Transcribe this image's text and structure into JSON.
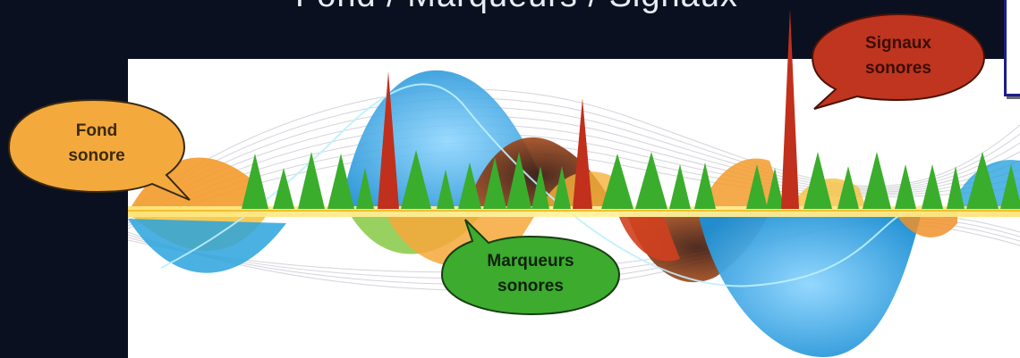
{
  "title": "Fond / Marqueurs / Signaux",
  "callouts": {
    "background": {
      "line1": "Fond",
      "line2": "sonore",
      "color": "#f4a93d"
    },
    "markers": {
      "line1": "Marqueurs",
      "line2": "sonores",
      "color": "#3cab2e"
    },
    "signals": {
      "line1": "Signaux",
      "line2": "sonores",
      "color": "#c0351f"
    }
  },
  "colors": {
    "page_bg": "#0a1020",
    "panel_bg": "#ffffff",
    "triangle_green": "#3aad2c",
    "spike_red": "#c0301c",
    "wave_blue": "#2aa3dd",
    "wave_orange": "#f39b2b"
  }
}
